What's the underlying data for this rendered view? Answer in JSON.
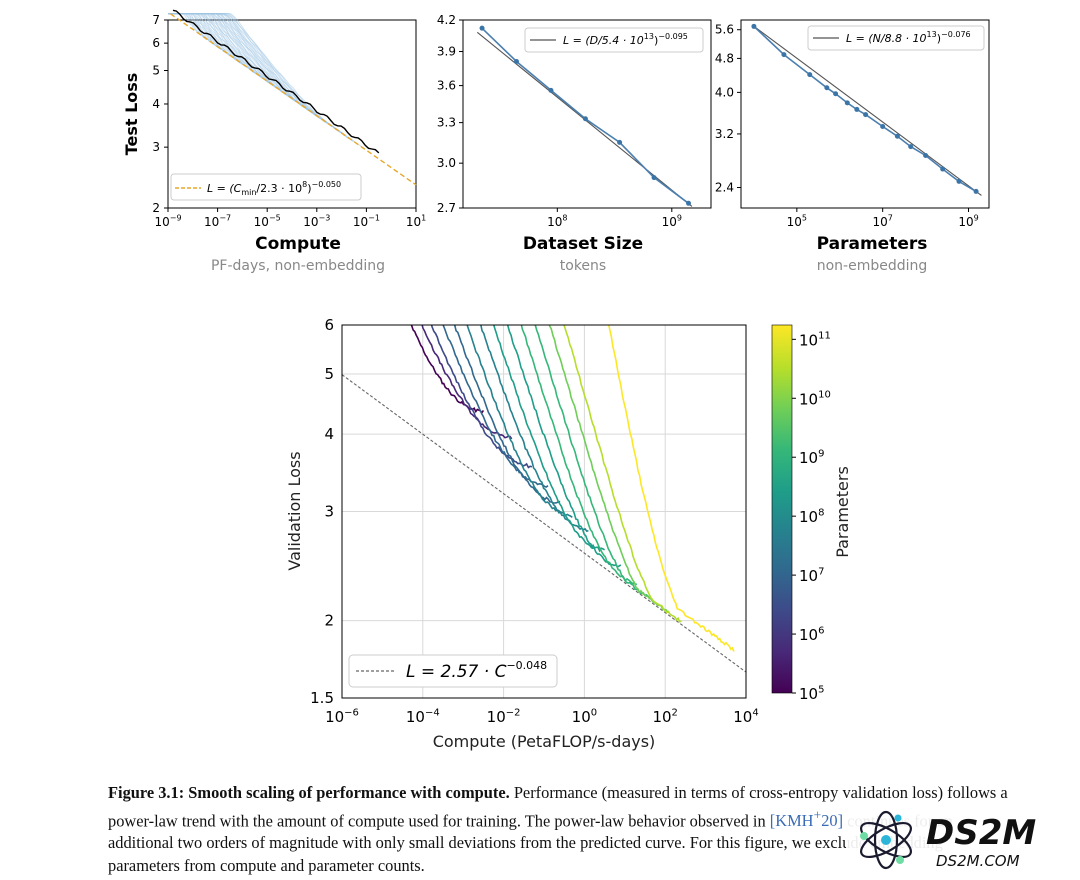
{
  "chart_data": [
    {
      "type": "line",
      "title": "",
      "xlabel": "Compute",
      "xsublabel": "PF-days, non-embedding",
      "ylabel": "Test Loss",
      "xscale": "log",
      "yscale": "log",
      "xlim": [
        1e-09,
        10
      ],
      "ylim": [
        2,
        7
      ],
      "x_ticks": [
        {
          "base": "10",
          "exp": "−9"
        },
        {
          "base": "10",
          "exp": "−7"
        },
        {
          "base": "10",
          "exp": "−5"
        },
        {
          "base": "10",
          "exp": "−3"
        },
        {
          "base": "10",
          "exp": "−1"
        },
        {
          "base": "10",
          "exp": "1"
        }
      ],
      "y_ticks": [
        "2",
        "3",
        "4",
        "5",
        "6",
        "7"
      ],
      "y_tick_values": [
        2,
        3,
        4,
        5,
        6,
        7
      ],
      "legend_placement": "lower-left",
      "legend": {
        "text": "L = (C",
        "sub": "min",
        "mid": "/2.3 · 10",
        "sup1": "8",
        "close": ")",
        "sup2": "−0.050"
      },
      "fit": {
        "coef": 230000000.0,
        "exponent": -0.05
      },
      "series": [
        {
          "values": []
        }
      ]
    },
    {
      "type": "line",
      "title": "",
      "xlabel": "Dataset Size",
      "xsublabel": "tokens",
      "ylabel": "",
      "xscale": "log",
      "yscale": "log",
      "xlim": [
        15000000.0,
        2200000000.0
      ],
      "ylim": [
        2.7,
        4.2
      ],
      "x_ticks": [
        {
          "base": "10",
          "exp": "8",
          "value": 100000000.0
        },
        {
          "base": "10",
          "exp": "9",
          "value": 1000000000.0
        }
      ],
      "y_ticks": [
        "2.7",
        "3.0",
        "3.3",
        "3.6",
        "3.9",
        "4.2"
      ],
      "y_tick_values": [
        2.7,
        3.0,
        3.3,
        3.6,
        3.9,
        4.2
      ],
      "legend_placement": "top-right",
      "legend": {
        "text": "L = (D/5.4 · 10",
        "sup1": "13",
        "close": ")",
        "sup2": "−0.095"
      },
      "points": {
        "x": [
          22000000.0,
          44000000.0,
          88000000.0,
          176000000.0,
          350000000.0,
          700000000.0,
          1400000000.0
        ],
        "y": [
          4.12,
          3.81,
          3.56,
          3.33,
          3.15,
          2.9,
          2.73
        ]
      }
    },
    {
      "type": "line",
      "title": "",
      "xlabel": "Parameters",
      "xsublabel": "non-embedding",
      "ylabel": "",
      "xscale": "log",
      "yscale": "log",
      "xlim": [
        5000.0,
        3000000000.0
      ],
      "ylim": [
        2.15,
        5.9
      ],
      "x_ticks": [
        {
          "base": "10",
          "exp": "5",
          "value": 100000.0
        },
        {
          "base": "10",
          "exp": "7",
          "value": 10000000.0
        },
        {
          "base": "10",
          "exp": "9",
          "value": 1000000000.0
        }
      ],
      "y_ticks": [
        "2.4",
        "3.2",
        "4.0",
        "4.8",
        "5.6"
      ],
      "y_tick_values": [
        2.4,
        3.2,
        4.0,
        4.8,
        5.6
      ],
      "legend_placement": "top-right",
      "legend": {
        "text": "L = (N/8.8 · 10",
        "sup1": "13",
        "close": ")",
        "sup2": "−0.076"
      },
      "points": {
        "x": [
          10000.0,
          50000.0,
          200000.0,
          500000.0,
          800000.0,
          1500000.0,
          2500000.0,
          4000000.0,
          10000000.0,
          22000000.0,
          45000000.0,
          100000000.0,
          250000000.0,
          600000000.0,
          1500000000.0
        ],
        "y": [
          5.7,
          4.9,
          4.4,
          4.1,
          3.97,
          3.78,
          3.65,
          3.55,
          3.33,
          3.16,
          2.99,
          2.85,
          2.65,
          2.48,
          2.35
        ]
      }
    },
    {
      "type": "line",
      "title": "",
      "xlabel": "Compute (PetaFLOP/s-days)",
      "ylabel": "Validation Loss",
      "xscale": "log",
      "yscale": "log",
      "xlim": [
        1e-06,
        10000.0
      ],
      "ylim": [
        1.5,
        6
      ],
      "x_ticks": [
        {
          "base": "10",
          "exp": "−6"
        },
        {
          "base": "10",
          "exp": "−4"
        },
        {
          "base": "10",
          "exp": "−2"
        },
        {
          "base": "10",
          "exp": "0"
        },
        {
          "base": "10",
          "exp": "2"
        },
        {
          "base": "10",
          "exp": "4"
        }
      ],
      "y_ticks": [
        "1.5",
        "2",
        "3",
        "4",
        "5",
        "6"
      ],
      "y_tick_values": [
        1.5,
        2,
        3,
        4,
        5,
        6
      ],
      "grid": true,
      "legend_placement": "lower-left",
      "legend": {
        "text": "L = 2.57 · C",
        "sup": "−0.048"
      },
      "fit": {
        "coef": 2.57,
        "exponent": -0.048
      },
      "colorbar": {
        "label": "Parameters",
        "scale": "log",
        "range": [
          100000.0,
          175000000000.0
        ],
        "ticks": [
          {
            "base": "10",
            "exp": "5"
          },
          {
            "base": "10",
            "exp": "6"
          },
          {
            "base": "10",
            "exp": "7"
          },
          {
            "base": "10",
            "exp": "8"
          },
          {
            "base": "10",
            "exp": "9"
          },
          {
            "base": "10",
            "exp": "10"
          },
          {
            "base": "10",
            "exp": "11"
          }
        ],
        "colors": [
          "#440154",
          "#482878",
          "#3e4989",
          "#31688e",
          "#26828e",
          "#1f9e89",
          "#35b779",
          "#6ece58",
          "#b5de2b",
          "#fde725"
        ]
      },
      "series": [
        {
          "values": []
        }
      ]
    }
  ],
  "caption": {
    "label": "Figure 3.1:",
    "bold_title": "Smooth scaling of performance with compute.",
    "line1_rest": "Performance (measured in terms of cross-entropy",
    "line2": "validation loss) follows a power-law trend with the amount of compute used for training. The power-law behavior",
    "line3_pre": "observed in",
    "citation": "[KMH",
    "citation_sup": "+",
    "citation_end": "20]",
    "line3_post": "continues for an additional two orders of magnitude with only small deviations from the",
    "line4": "predicted curve. For this figure, we exclude embedding parameters from compute and parameter counts."
  },
  "logo": {
    "brand": "DS2M",
    "domain": "DS2M.COM"
  },
  "colors": {
    "line_blue": "#4a7fb0",
    "light_blue": "#9fc4e4",
    "fit_orange": "#e8a72a",
    "black": "#000000"
  }
}
